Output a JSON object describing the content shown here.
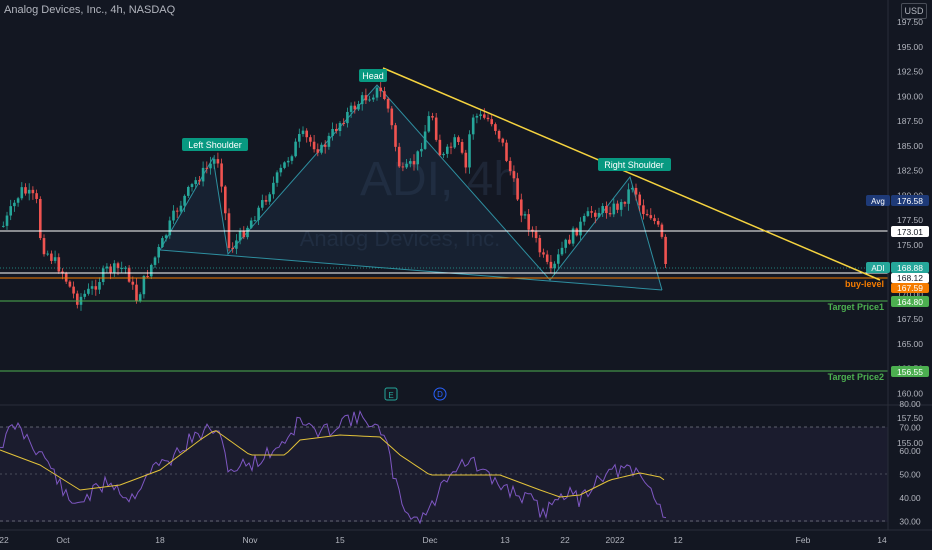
{
  "header": {
    "title": "Analog Devices, Inc., 4h, NASDAQ"
  },
  "currency": "USD",
  "watermark": {
    "symbol": "ADI, 4h",
    "name": "Analog Devices, Inc."
  },
  "price_axis_ticks": [
    "197.50",
    "195.00",
    "192.50",
    "190.00",
    "187.50",
    "185.00",
    "182.50",
    "180.00",
    "177.50",
    "175.00",
    "172.50",
    "170.00",
    "167.50",
    "165.00",
    "162.50",
    "160.00",
    "157.50",
    "155.00"
  ],
  "rsi_axis_ticks": [
    "80.00",
    "70.00",
    "60.00",
    "50.00",
    "40.00",
    "30.00"
  ],
  "time_axis": [
    "22",
    "Oct",
    "18",
    "Nov",
    "15",
    "Dec",
    "13",
    "22",
    "2022",
    "12",
    "Feb",
    "14"
  ],
  "pattern_labels": {
    "left_shoulder": "Left Shoulder",
    "head": "Head",
    "right_shoulder": "Right Shoulder"
  },
  "levels": {
    "avg": {
      "label": "Avg",
      "value": "176.58"
    },
    "line_173": {
      "value": "173.01"
    },
    "adi": {
      "label": "ADI",
      "value": "168.88"
    },
    "line_168": {
      "value": "168.12"
    },
    "buy": {
      "label": "buy-level",
      "value": "167.59"
    },
    "target1": {
      "label": "Target Price1",
      "value": "164.80"
    },
    "target2": {
      "label": "Target Price2",
      "value": "156.55"
    }
  },
  "event_markers": [
    "E",
    "D"
  ],
  "colors": {
    "up": "#26a69a",
    "down": "#ef5350",
    "trend": "#f5d33f",
    "green": "#4caf50",
    "orange": "#f57c00",
    "rsi": "#7e57c2",
    "rsi_ma": "#e2c23a"
  }
}
